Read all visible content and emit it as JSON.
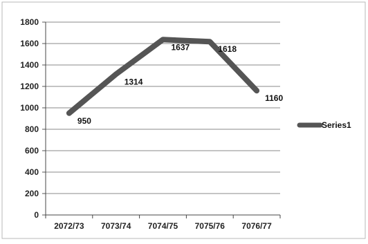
{
  "chart_data": {
    "type": "line",
    "categories": [
      "2072/73",
      "7073/74",
      "7074/75",
      "7075/76",
      "7076/77"
    ],
    "series": [
      {
        "name": "Series1",
        "values": [
          950,
          1314,
          1637,
          1618,
          1160
        ],
        "color": "#555555"
      }
    ],
    "data_labels": [
      "950",
      "1314",
      "1637",
      "1618",
      "1160"
    ],
    "y_ticks": [
      "0",
      "200",
      "400",
      "600",
      "800",
      "1000",
      "1200",
      "1400",
      "1600",
      "1800"
    ],
    "ylim": [
      0,
      1800
    ],
    "grid": true,
    "legend_position": "right",
    "title": "",
    "xlabel": "",
    "ylabel": ""
  }
}
